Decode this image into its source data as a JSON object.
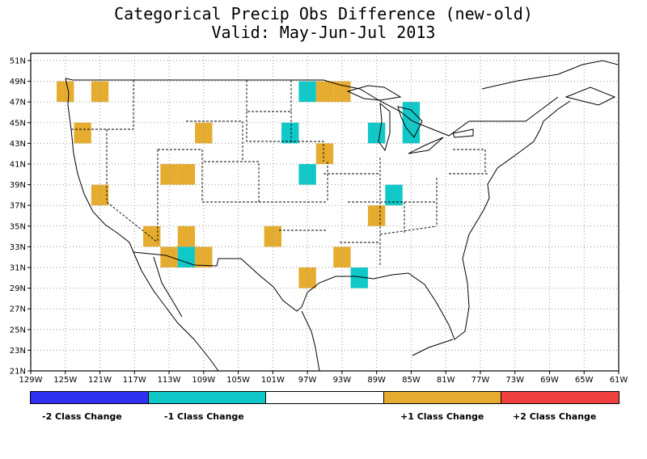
{
  "title": "Categorical Precip Obs Difference (new-old)",
  "subtitle": "Valid: May-Jun-Jul 2013",
  "colors": {
    "neg2": "#3030f0",
    "neg1": "#10c8c8",
    "zero": "#ffffff",
    "pos1": "#e6ac30",
    "pos2": "#f04040"
  },
  "lat_labels": [
    "51N",
    "49N",
    "47N",
    "45N",
    "43N",
    "41N",
    "39N",
    "37N",
    "35N",
    "33N",
    "31N",
    "29N",
    "27N",
    "25N",
    "23N",
    "21N"
  ],
  "lon_labels": [
    "129W",
    "125W",
    "121W",
    "117W",
    "113W",
    "109W",
    "105W",
    "101W",
    "97W",
    "93W",
    "89W",
    "85W",
    "81W",
    "77W",
    "73W",
    "69W",
    "65W",
    "61W"
  ],
  "legend": [
    {
      "label": "-2 Class Change",
      "color": "#3030f0"
    },
    {
      "label": "-1 Class Change",
      "color": "#10c8c8"
    },
    {
      "label": "",
      "color": "#ffffff"
    },
    {
      "label": "+1 Class Change",
      "color": "#e6ac30"
    },
    {
      "label": "+2 Class Change",
      "color": "#f04040"
    }
  ],
  "cells": [
    {
      "lon": -125,
      "lat": 48,
      "v": 1
    },
    {
      "lon": -121,
      "lat": 48,
      "v": 1
    },
    {
      "lon": -97,
      "lat": 48,
      "v": -1
    },
    {
      "lon": -95,
      "lat": 48,
      "v": 1
    },
    {
      "lon": -93,
      "lat": 48,
      "v": 1
    },
    {
      "lon": -85,
      "lat": 46,
      "v": -1
    },
    {
      "lon": -123,
      "lat": 44,
      "v": 1
    },
    {
      "lon": -109,
      "lat": 44,
      "v": 1
    },
    {
      "lon": -99,
      "lat": 44,
      "v": -1
    },
    {
      "lon": -89,
      "lat": 44,
      "v": -1
    },
    {
      "lon": -85,
      "lat": 44,
      "v": -1
    },
    {
      "lon": -95,
      "lat": 42,
      "v": 1
    },
    {
      "lon": -113,
      "lat": 40,
      "v": 1
    },
    {
      "lon": -111,
      "lat": 40,
      "v": 1
    },
    {
      "lon": -97,
      "lat": 40,
      "v": -1
    },
    {
      "lon": -121,
      "lat": 38,
      "v": 1
    },
    {
      "lon": -87,
      "lat": 38,
      "v": -1
    },
    {
      "lon": -89,
      "lat": 36,
      "v": 1
    },
    {
      "lon": -115,
      "lat": 34,
      "v": 1
    },
    {
      "lon": -111,
      "lat": 34,
      "v": 1
    },
    {
      "lon": -101,
      "lat": 34,
      "v": 1
    },
    {
      "lon": -113,
      "lat": 32,
      "v": 1
    },
    {
      "lon": -111,
      "lat": 32,
      "v": -1
    },
    {
      "lon": -109,
      "lat": 32,
      "v": 1
    },
    {
      "lon": -93,
      "lat": 32,
      "v": 1
    },
    {
      "lon": -97,
      "lat": 30,
      "v": 1
    },
    {
      "lon": -91,
      "lat": 30,
      "v": -1
    }
  ]
}
